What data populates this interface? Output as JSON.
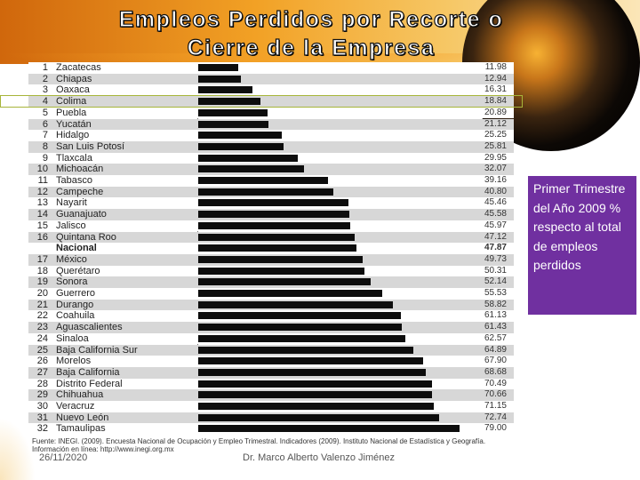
{
  "slide": {
    "title_line1": "Empleos Perdidos  por Recorte o",
    "title_line2": "Cierre de la Empresa",
    "side_note": "Primer Trimestre del Año 2009 % respecto al total de empleos perdidos",
    "source": "Fuente: INEGI. (2009). Encuesta Nacional de Ocupación y Empleo Trimestral. Indicadores (2009). Instituto Nacional de Estadística y Geografía. Información en línea: http://www.inegi.org.mx",
    "date": "26/11/2020",
    "author": "Dr. Marco Alberto Valenzo Jiménez"
  },
  "chart_data": {
    "type": "bar",
    "orientation": "horizontal",
    "title": "Empleos Perdidos por Recorte o Cierre de la Empresa",
    "xlim": [
      0,
      80
    ],
    "highlighted": "Colima",
    "rows": [
      {
        "rank": "1",
        "name": "Zacatecas",
        "value": 11.98
      },
      {
        "rank": "2",
        "name": "Chiapas",
        "value": 12.94
      },
      {
        "rank": "3",
        "name": "Oaxaca",
        "value": 16.31
      },
      {
        "rank": "4",
        "name": "Colima",
        "value": 18.84
      },
      {
        "rank": "5",
        "name": "Puebla",
        "value": 20.89
      },
      {
        "rank": "6",
        "name": "Yucatán",
        "value": 21.12
      },
      {
        "rank": "7",
        "name": "Hidalgo",
        "value": 25.25
      },
      {
        "rank": "8",
        "name": "San Luis Potosí",
        "value": 25.81
      },
      {
        "rank": "9",
        "name": "Tlaxcala",
        "value": 29.95
      },
      {
        "rank": "10",
        "name": "Michoacán",
        "value": 32.07
      },
      {
        "rank": "11",
        "name": "Tabasco",
        "value": 39.16
      },
      {
        "rank": "12",
        "name": "Campeche",
        "value": 40.8
      },
      {
        "rank": "13",
        "name": "Nayarit",
        "value": 45.46
      },
      {
        "rank": "14",
        "name": "Guanajuato",
        "value": 45.58
      },
      {
        "rank": "15",
        "name": "Jalisco",
        "value": 45.97
      },
      {
        "rank": "16",
        "name": "Quintana Roo",
        "value": 47.12
      },
      {
        "rank": "",
        "name": "Nacional",
        "value": 47.87,
        "national": true
      },
      {
        "rank": "17",
        "name": "México",
        "value": 49.73
      },
      {
        "rank": "18",
        "name": "Querétaro",
        "value": 50.31
      },
      {
        "rank": "19",
        "name": "Sonora",
        "value": 52.14
      },
      {
        "rank": "20",
        "name": "Guerrero",
        "value": 55.53
      },
      {
        "rank": "21",
        "name": "Durango",
        "value": 58.82
      },
      {
        "rank": "22",
        "name": "Coahuila",
        "value": 61.13
      },
      {
        "rank": "23",
        "name": "Aguascalientes",
        "value": 61.43
      },
      {
        "rank": "24",
        "name": "Sinaloa",
        "value": 62.57
      },
      {
        "rank": "25",
        "name": "Baja California Sur",
        "value": 64.89
      },
      {
        "rank": "26",
        "name": "Morelos",
        "value": 67.9
      },
      {
        "rank": "27",
        "name": "Baja California",
        "value": 68.68
      },
      {
        "rank": "28",
        "name": "Distrito Federal",
        "value": 70.49
      },
      {
        "rank": "29",
        "name": "Chihuahua",
        "value": 70.66
      },
      {
        "rank": "30",
        "name": "Veracruz",
        "value": 71.15
      },
      {
        "rank": "31",
        "name": "Nuevo León",
        "value": 72.74
      },
      {
        "rank": "32",
        "name": "Tamaulipas",
        "value": 79.0
      }
    ],
    "colors": {
      "bar": "#0d0d0d",
      "alt_row": "#d7d7d7",
      "highlight": "#a7b53a",
      "side_box": "#7030a0"
    }
  }
}
